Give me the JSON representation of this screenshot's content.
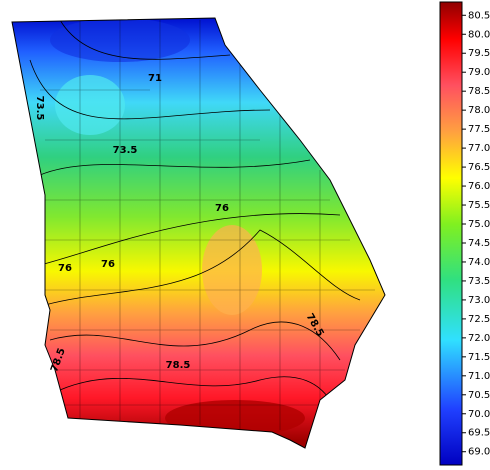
{
  "map": {
    "contour_labels": [
      "71",
      "73.5",
      "73.5",
      "76",
      "76",
      "76",
      "78.5",
      "78.5",
      "78.5"
    ],
    "colorbar": {
      "range": [
        68.65,
        80.85
      ],
      "ticks": [
        {
          "value": 69.0,
          "label": "69.0"
        },
        {
          "value": 69.5,
          "label": "69.5"
        },
        {
          "value": 70.0,
          "label": "70.0"
        },
        {
          "value": 70.5,
          "label": "70.5"
        },
        {
          "value": 71.0,
          "label": "71.0"
        },
        {
          "value": 71.5,
          "label": "71.5"
        },
        {
          "value": 72.0,
          "label": "72.0"
        },
        {
          "value": 72.5,
          "label": "72.5"
        },
        {
          "value": 73.0,
          "label": "73.0"
        },
        {
          "value": 73.5,
          "label": "73.5"
        },
        {
          "value": 74.0,
          "label": "74.0"
        },
        {
          "value": 74.5,
          "label": "74.5"
        },
        {
          "value": 75.0,
          "label": "75.0"
        },
        {
          "value": 75.5,
          "label": "75.5"
        },
        {
          "value": 76.0,
          "label": "76.0"
        },
        {
          "value": 76.5,
          "label": "76.5"
        },
        {
          "value": 77.0,
          "label": "77.0"
        },
        {
          "value": 77.5,
          "label": "77.5"
        },
        {
          "value": 78.0,
          "label": "78.0"
        },
        {
          "value": 78.5,
          "label": "78.5"
        },
        {
          "value": 79.0,
          "label": "79.0"
        },
        {
          "value": 79.5,
          "label": "79.5"
        },
        {
          "value": 80.0,
          "label": "80.0"
        },
        {
          "value": 80.5,
          "label": "80.5"
        }
      ]
    }
  }
}
